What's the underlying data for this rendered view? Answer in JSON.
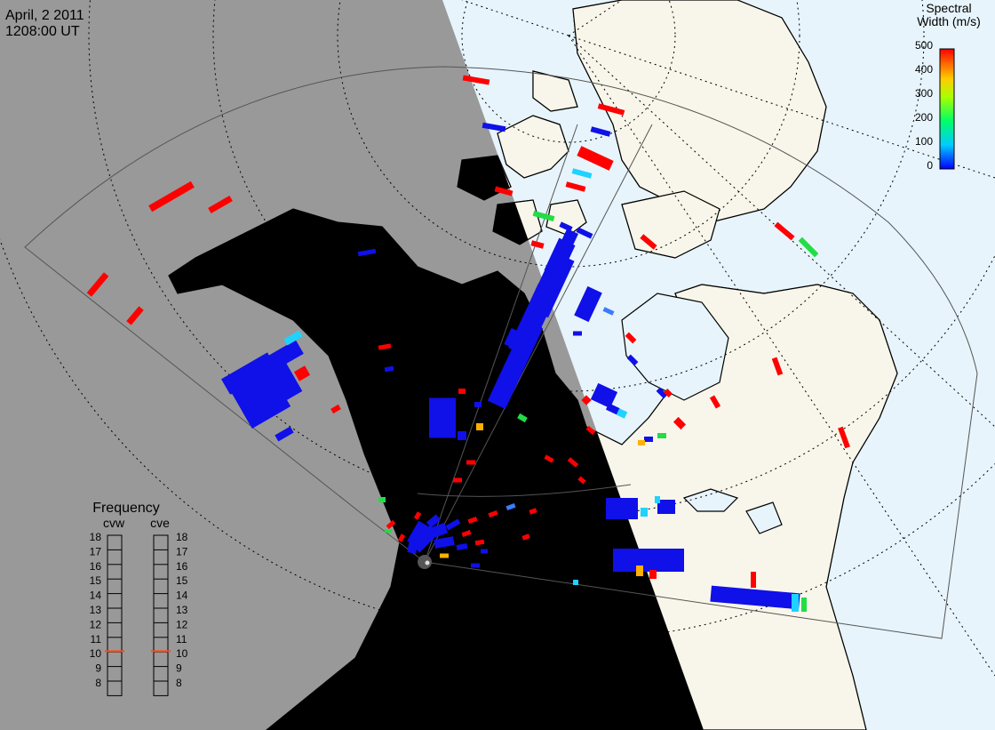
{
  "title": {
    "date": "April, 2 2011",
    "time": "1208:00 UT"
  },
  "colorbar": {
    "title_line1": "Spectral",
    "title_line2": "Width (m/s)",
    "ticks": [
      "500",
      "400",
      "300",
      "200",
      "100",
      "0"
    ],
    "range": [
      0,
      500
    ]
  },
  "frequency_panel": {
    "title": "Frequency",
    "radars": [
      {
        "name": "cvw",
        "current_mhz": 11,
        "marker_color": "#ff4a1c"
      },
      {
        "name": "cve",
        "current_mhz": 11,
        "marker_color": "#ff4a1c"
      }
    ],
    "levels": [
      "18",
      "17",
      "16",
      "15",
      "14",
      "13",
      "12",
      "11",
      "10",
      "9",
      "8"
    ]
  },
  "radar_labels": {
    "west": "cvw",
    "east": "cve"
  },
  "colors": {
    "night": "#999999",
    "day_ocean": "#e7f4fb",
    "day_land": "#f8f6ea",
    "coast": "#000000"
  },
  "scatter": [
    {
      "color": "#ff0000",
      "count": 38,
      "spectral_width_band": "400-500"
    },
    {
      "color": "#1010e8",
      "count": 120,
      "spectral_width_band": "0-100"
    },
    {
      "color": "#1fd2ff",
      "count": 9,
      "spectral_width_band": "100-150"
    },
    {
      "color": "#22dd44",
      "count": 4,
      "spectral_width_band": "200-250"
    },
    {
      "color": "#ffb000",
      "count": 3,
      "spectral_width_band": "350-400"
    }
  ]
}
